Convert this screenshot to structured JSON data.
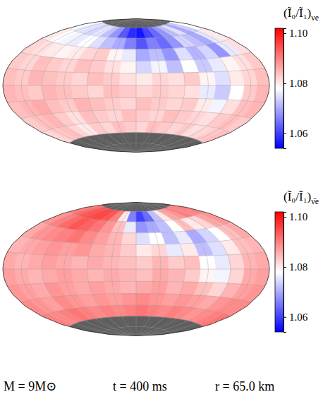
{
  "chart_data": [
    {
      "type": "heatmap",
      "grid": true,
      "lon_edges": [
        -180,
        -160,
        -140,
        -120,
        -100,
        -80,
        -60,
        -40,
        -20,
        0,
        20,
        40,
        60,
        80,
        100,
        120,
        140,
        160,
        180
      ],
      "lat_edges": [
        90,
        75,
        60,
        45,
        30,
        15,
        0,
        -15,
        -30,
        -45,
        -60,
        -75,
        -90
      ],
      "cells": [
        [
          null,
          null,
          null,
          null,
          null,
          null,
          null,
          null,
          null,
          null,
          null,
          null,
          null,
          null,
          null,
          null,
          null,
          null
        ],
        [
          1.078,
          1.076,
          1.075,
          1.074,
          1.076,
          1.072,
          1.068,
          1.062,
          1.058,
          1.056,
          1.06,
          1.064,
          1.068,
          1.072,
          1.075,
          1.07,
          1.074,
          1.078
        ],
        [
          1.08,
          1.078,
          1.077,
          1.076,
          1.078,
          1.075,
          1.072,
          1.07,
          1.066,
          1.062,
          1.066,
          1.064,
          1.068,
          1.074,
          1.072,
          1.07,
          1.076,
          1.08
        ],
        [
          1.082,
          1.081,
          1.08,
          1.079,
          1.08,
          1.082,
          1.083,
          1.079,
          1.076,
          1.07,
          1.072,
          1.068,
          1.075,
          1.071,
          1.074,
          1.068,
          1.076,
          1.081
        ],
        [
          1.083,
          1.082,
          1.084,
          1.083,
          1.082,
          1.084,
          1.083,
          1.081,
          1.079,
          1.074,
          1.077,
          1.072,
          1.078,
          1.073,
          1.076,
          1.079,
          1.081,
          1.083
        ],
        [
          1.084,
          1.083,
          1.085,
          1.084,
          1.083,
          1.082,
          1.084,
          1.083,
          1.081,
          1.08,
          1.082,
          1.081,
          1.083,
          1.079,
          1.075,
          1.08,
          1.082,
          1.084
        ],
        [
          1.085,
          1.084,
          1.083,
          1.085,
          1.084,
          1.083,
          1.082,
          1.084,
          1.083,
          1.082,
          1.083,
          1.082,
          1.081,
          1.076,
          1.073,
          1.078,
          1.083,
          1.085
        ],
        [
          1.084,
          1.085,
          1.086,
          1.084,
          1.083,
          1.085,
          1.084,
          1.083,
          1.082,
          1.084,
          1.083,
          1.082,
          1.083,
          1.08,
          1.077,
          1.081,
          1.084,
          1.085
        ],
        [
          1.083,
          1.084,
          1.085,
          1.083,
          1.081,
          1.084,
          1.083,
          1.082,
          1.084,
          1.083,
          1.082,
          1.084,
          1.083,
          1.082,
          1.081,
          1.083,
          1.084,
          1.083
        ],
        [
          1.082,
          1.083,
          1.084,
          1.082,
          1.08,
          1.083,
          1.082,
          1.084,
          1.083,
          1.082,
          1.084,
          1.083,
          1.082,
          1.083,
          1.081,
          1.082,
          1.083,
          1.084
        ],
        [
          null,
          null,
          null,
          null,
          null,
          null,
          null,
          null,
          null,
          null,
          null,
          null,
          null,
          null,
          null,
          null,
          null,
          null
        ],
        [
          null,
          null,
          null,
          null,
          null,
          null,
          null,
          null,
          null,
          null,
          null,
          null,
          null,
          null,
          null,
          null,
          null,
          null
        ]
      ],
      "colorbar": {
        "title": "(Ĩ₀/Ĩ₁)",
        "title_subscript": "νe",
        "range": [
          1.054,
          1.102
        ],
        "ticks": [
          1.06,
          1.08,
          {
            "value": 1.1,
            "label": "1.10"
          }
        ]
      }
    },
    {
      "type": "heatmap",
      "grid": true,
      "lon_edges": [
        -180,
        -160,
        -140,
        -120,
        -100,
        -80,
        -60,
        -40,
        -20,
        0,
        20,
        40,
        60,
        80,
        100,
        120,
        140,
        160,
        180
      ],
      "lat_edges": [
        90,
        75,
        60,
        45,
        30,
        15,
        0,
        -15,
        -30,
        -45,
        -60,
        -75,
        -90
      ],
      "cells": [
        [
          null,
          null,
          null,
          null,
          null,
          null,
          null,
          null,
          null,
          null,
          null,
          null,
          null,
          null,
          null,
          null,
          null,
          null
        ],
        [
          1.09,
          1.092,
          1.094,
          1.095,
          1.096,
          1.094,
          1.09,
          1.08,
          1.066,
          1.06,
          1.064,
          1.072,
          1.08,
          1.086,
          1.088,
          1.09,
          1.089,
          1.09
        ],
        [
          1.088,
          1.09,
          1.092,
          1.094,
          1.093,
          1.091,
          1.088,
          1.084,
          1.076,
          1.068,
          1.07,
          1.072,
          1.078,
          1.084,
          1.08,
          1.082,
          1.086,
          1.088
        ],
        [
          1.086,
          1.088,
          1.089,
          1.09,
          1.091,
          1.089,
          1.087,
          1.085,
          1.082,
          1.075,
          1.078,
          1.072,
          1.076,
          1.07,
          1.074,
          1.078,
          1.084,
          1.086
        ],
        [
          1.085,
          1.086,
          1.087,
          1.088,
          1.087,
          1.088,
          1.086,
          1.085,
          1.083,
          1.08,
          1.082,
          1.076,
          1.08,
          1.072,
          1.075,
          1.08,
          1.084,
          1.085
        ],
        [
          1.086,
          1.085,
          1.086,
          1.087,
          1.086,
          1.085,
          1.086,
          1.085,
          1.084,
          1.083,
          1.085,
          1.083,
          1.084,
          1.078,
          1.076,
          1.082,
          1.085,
          1.086
        ],
        [
          1.087,
          1.086,
          1.085,
          1.086,
          1.087,
          1.086,
          1.085,
          1.086,
          1.085,
          1.084,
          1.086,
          1.085,
          1.083,
          1.079,
          1.077,
          1.082,
          1.086,
          1.087
        ],
        [
          1.088,
          1.087,
          1.086,
          1.088,
          1.087,
          1.086,
          1.087,
          1.086,
          1.085,
          1.086,
          1.087,
          1.085,
          1.086,
          1.084,
          1.082,
          1.085,
          1.087,
          1.088
        ],
        [
          1.089,
          1.088,
          1.087,
          1.089,
          1.088,
          1.087,
          1.088,
          1.087,
          1.088,
          1.089,
          1.088,
          1.087,
          1.088,
          1.087,
          1.086,
          1.088,
          1.089,
          1.089
        ],
        [
          1.09,
          1.089,
          1.09,
          1.091,
          1.09,
          1.089,
          1.09,
          1.089,
          1.09,
          1.091,
          1.09,
          1.089,
          1.09,
          1.089,
          1.088,
          1.089,
          1.09,
          1.091
        ],
        [
          null,
          null,
          null,
          null,
          null,
          null,
          null,
          null,
          null,
          null,
          null,
          null,
          null,
          null,
          null,
          null,
          null,
          null
        ],
        [
          null,
          null,
          null,
          null,
          null,
          null,
          null,
          null,
          null,
          null,
          null,
          null,
          null,
          null,
          null,
          null,
          null,
          null
        ]
      ],
      "colorbar": {
        "title": "(Ĩ₀/Ĩ₁)",
        "title_subscript": "ν̄e",
        "range": [
          1.054,
          1.102
        ],
        "ticks": [
          1.06,
          1.08,
          {
            "value": 1.1,
            "label": "1.10"
          }
        ]
      }
    }
  ],
  "footer": [
    "M = 9M⊙",
    "t = 400 ms",
    "r = 65.0 km"
  ]
}
